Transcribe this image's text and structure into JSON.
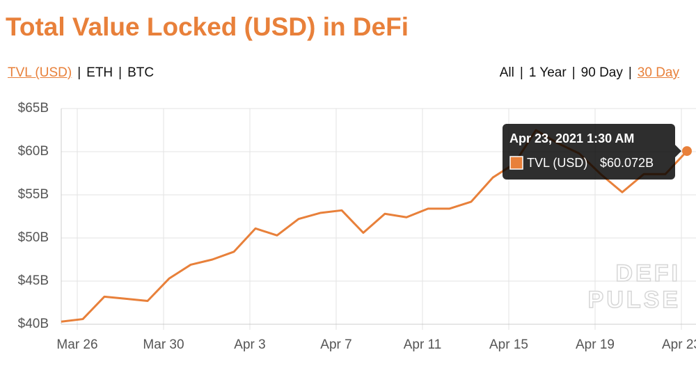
{
  "title": "Total Value Locked (USD) in DeFi",
  "metric_tabs": [
    "TVL (USD)",
    "ETH",
    "BTC"
  ],
  "active_metric": "TVL (USD)",
  "range_tabs": [
    "All",
    "1 Year",
    "90 Day",
    "30 Day"
  ],
  "active_range": "30 Day",
  "chart_data": {
    "type": "line",
    "x": [
      "Mar 25",
      "Mar 26",
      "Mar 27",
      "Mar 28",
      "Mar 29",
      "Mar 30",
      "Mar 31",
      "Apr 1",
      "Apr 2",
      "Apr 3",
      "Apr 4",
      "Apr 5",
      "Apr 6",
      "Apr 7",
      "Apr 8",
      "Apr 9",
      "Apr 10",
      "Apr 11",
      "Apr 12",
      "Apr 13",
      "Apr 14",
      "Apr 15",
      "Apr 16",
      "Apr 17",
      "Apr 18",
      "Apr 19",
      "Apr 20",
      "Apr 21",
      "Apr 22",
      "Apr 23"
    ],
    "xticks": [
      "Mar 26",
      "Mar 30",
      "Apr 3",
      "Apr 7",
      "Apr 11",
      "Apr 15",
      "Apr 19",
      "Apr 23"
    ],
    "series": [
      {
        "name": "TVL (USD)",
        "color": "#e8803a",
        "values": [
          40.3,
          40.6,
          43.2,
          42.95,
          42.7,
          45.3,
          46.9,
          47.5,
          48.4,
          51.1,
          50.3,
          52.2,
          52.9,
          53.2,
          50.6,
          52.8,
          52.4,
          53.4,
          53.4,
          54.2,
          57.0,
          58.6,
          62.5,
          61.0,
          59.8,
          57.4,
          55.3,
          57.4,
          57.4,
          60.072
        ]
      }
    ],
    "ylim": [
      40,
      65
    ],
    "yticks": [
      {
        "value": 40,
        "label": "$40B"
      },
      {
        "value": 45,
        "label": "$45B"
      },
      {
        "value": 50,
        "label": "$50B"
      },
      {
        "value": 55,
        "label": "$55B"
      },
      {
        "value": 60,
        "label": "$60B"
      },
      {
        "value": 65,
        "label": "$65B"
      }
    ],
    "grid": true,
    "tooltip": {
      "title": "Apr 23, 2021 1:30 AM",
      "point": 29,
      "value_label": "$60.072B"
    },
    "watermark": [
      "DEFI",
      "PULSE"
    ]
  }
}
